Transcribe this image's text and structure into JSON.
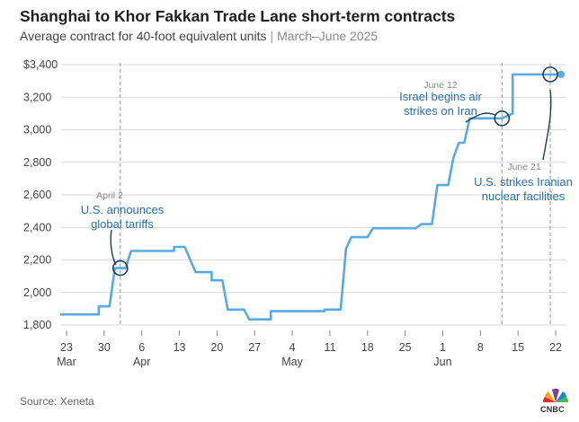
{
  "header": {
    "title": "Shanghai to Khor Fakkan Trade Lane short-term contracts",
    "subtitle_main": "Average contract for 40-foot equivalent units",
    "subtitle_sep": "|",
    "subtitle_range": "March–June 2025"
  },
  "footer": {
    "source": "Source: Xeneta",
    "logo_text": "CNBC"
  },
  "colors": {
    "line": "#5aa9e0",
    "annotation": "#1b3f5c",
    "annotation_text": "#2b6fa8",
    "grid": "#d9d9d9",
    "marker_line": "#9a9a9a"
  },
  "chart_data": {
    "type": "line",
    "title": "Shanghai to Khor Fakkan Trade Lane short-term contracts",
    "subtitle": "Average contract for 40-foot equivalent units | March–June 2025",
    "ylabel": "",
    "xlabel": "",
    "ylim": [
      1800,
      3400
    ],
    "grid": true,
    "yticks": [
      1800,
      2000,
      2200,
      2400,
      2600,
      2800,
      3000,
      3200,
      3400
    ],
    "ytick_labels": [
      "1,800",
      "2,000",
      "2,200",
      "2,400",
      "2,600",
      "2,800",
      "3,000",
      "3,200",
      "$3,400"
    ],
    "xticks": [
      {
        "date": "2025-03-23",
        "day": "23",
        "month": "Mar"
      },
      {
        "date": "2025-03-30",
        "day": "30",
        "month": ""
      },
      {
        "date": "2025-04-06",
        "day": "6",
        "month": "Apr"
      },
      {
        "date": "2025-04-13",
        "day": "13",
        "month": ""
      },
      {
        "date": "2025-04-20",
        "day": "20",
        "month": ""
      },
      {
        "date": "2025-04-27",
        "day": "27",
        "month": ""
      },
      {
        "date": "2025-05-04",
        "day": "4",
        "month": "May"
      },
      {
        "date": "2025-05-11",
        "day": "11",
        "month": ""
      },
      {
        "date": "2025-05-18",
        "day": "18",
        "month": ""
      },
      {
        "date": "2025-05-25",
        "day": "25",
        "month": ""
      },
      {
        "date": "2025-06-01",
        "day": "1",
        "month": "Jun"
      },
      {
        "date": "2025-06-08",
        "day": "8",
        "month": ""
      },
      {
        "date": "2025-06-15",
        "day": "15",
        "month": ""
      },
      {
        "date": "2025-06-22",
        "day": "22",
        "month": ""
      }
    ],
    "xlim": [
      "2025-03-22",
      "2025-06-24"
    ],
    "series": [
      {
        "values": [
          {
            "x": "2025-03-22",
            "y": 1865
          },
          {
            "x": "2025-03-29",
            "y": 1865
          },
          {
            "x": "2025-03-29",
            "y": 1915
          },
          {
            "x": "2025-03-31",
            "y": 1915
          },
          {
            "x": "2025-04-01",
            "y": 2150
          },
          {
            "x": "2025-04-03",
            "y": 2150
          },
          {
            "x": "2025-04-04",
            "y": 2255
          },
          {
            "x": "2025-04-12",
            "y": 2255
          },
          {
            "x": "2025-04-12",
            "y": 2280
          },
          {
            "x": "2025-04-14",
            "y": 2280
          },
          {
            "x": "2025-04-16",
            "y": 2125
          },
          {
            "x": "2025-04-19",
            "y": 2125
          },
          {
            "x": "2025-04-19",
            "y": 2075
          },
          {
            "x": "2025-04-21",
            "y": 2075
          },
          {
            "x": "2025-04-22",
            "y": 1895
          },
          {
            "x": "2025-04-25",
            "y": 1895
          },
          {
            "x": "2025-04-26",
            "y": 1835
          },
          {
            "x": "2025-04-30",
            "y": 1835
          },
          {
            "x": "2025-04-30",
            "y": 1885
          },
          {
            "x": "2025-05-10",
            "y": 1885
          },
          {
            "x": "2025-05-10",
            "y": 1895
          },
          {
            "x": "2025-05-13",
            "y": 1895
          },
          {
            "x": "2025-05-14",
            "y": 2270
          },
          {
            "x": "2025-05-15",
            "y": 2340
          },
          {
            "x": "2025-05-18",
            "y": 2340
          },
          {
            "x": "2025-05-19",
            "y": 2395
          },
          {
            "x": "2025-05-27",
            "y": 2395
          },
          {
            "x": "2025-05-28",
            "y": 2420
          },
          {
            "x": "2025-05-30",
            "y": 2420
          },
          {
            "x": "2025-05-31",
            "y": 2660
          },
          {
            "x": "2025-06-02",
            "y": 2660
          },
          {
            "x": "2025-06-03",
            "y": 2830
          },
          {
            "x": "2025-06-04",
            "y": 2920
          },
          {
            "x": "2025-06-05",
            "y": 2920
          },
          {
            "x": "2025-06-06",
            "y": 3070
          },
          {
            "x": "2025-06-12",
            "y": 3070
          },
          {
            "x": "2025-06-14",
            "y": 3100
          },
          {
            "x": "2025-06-14",
            "y": 3340
          },
          {
            "x": "2025-06-23",
            "y": 3340
          }
        ]
      }
    ],
    "annotations": [
      {
        "date_label": "April 2",
        "lines": [
          "U.S. announces",
          "global tariffs"
        ],
        "x": "2025-04-02",
        "y": 2150
      },
      {
        "date_label": "June 12",
        "lines": [
          "Israel begins air",
          "strikes on Iran"
        ],
        "x": "2025-06-12",
        "y": 3070
      },
      {
        "date_label": "June 21",
        "lines": [
          "U.S. strikes Iranian",
          "nuclear facilities"
        ],
        "x": "2025-06-21",
        "y": 3340
      }
    ]
  }
}
